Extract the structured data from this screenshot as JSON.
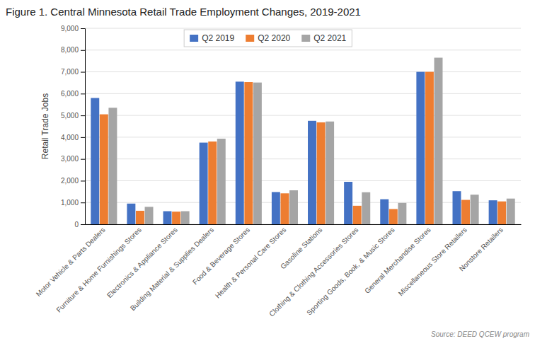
{
  "chart_data": {
    "type": "bar",
    "title": "Figure 1. Central Minnesota Retail Trade Employment Changes, 2019-2021",
    "y_label": "Retail Trade Jobs",
    "annotations": [
      "Source: DEED QCEW program"
    ],
    "categories": [
      "Motor Vehicle & Parts Dealers",
      "Furniture & Home Furnishings Stores",
      "Electronics & Appliance Stores",
      "Building Material & Supplies Dealers",
      "Food & Beverage Stores",
      "Health & Personal Care Stores",
      "Gasoline Stations",
      "Clothing & Clothing Accessories Stores",
      "Sporting Goods, Book, & Music Stores",
      "General Merchandise Stores",
      "Miscellaneous Store Retailers",
      "Nonstore Retailers"
    ],
    "series": [
      {
        "name": "Q2 2019",
        "color": "#4472C4",
        "values": [
          5800,
          950,
          600,
          3750,
          6550,
          1480,
          4750,
          1950,
          1150,
          7000,
          1520,
          1100
        ]
      },
      {
        "name": "Q2 2020",
        "color": "#ED7D31",
        "values": [
          5050,
          620,
          580,
          3800,
          6530,
          1420,
          4680,
          850,
          700,
          7000,
          1120,
          1050
        ]
      },
      {
        "name": "Q2 2021",
        "color": "#A5A5A5",
        "values": [
          5350,
          800,
          600,
          3930,
          6510,
          1560,
          4720,
          1470,
          980,
          7650,
          1360,
          1180
        ]
      }
    ],
    "ylim": [
      0,
      9000
    ],
    "yticks": [
      0,
      {
        "value": 1000,
        "label": "1,000"
      },
      {
        "value": 2000,
        "label": "2,000"
      },
      {
        "value": 3000,
        "label": "3,000"
      },
      {
        "value": 4000,
        "label": "4,000"
      },
      {
        "value": 5000,
        "label": "5,000"
      },
      {
        "value": 6000,
        "label": "6,000"
      },
      {
        "value": 7000,
        "label": "7,000"
      },
      {
        "value": 8000,
        "label": "8,000"
      },
      {
        "value": 9000,
        "label": "9,000"
      }
    ],
    "grid": true,
    "legend": "top"
  }
}
